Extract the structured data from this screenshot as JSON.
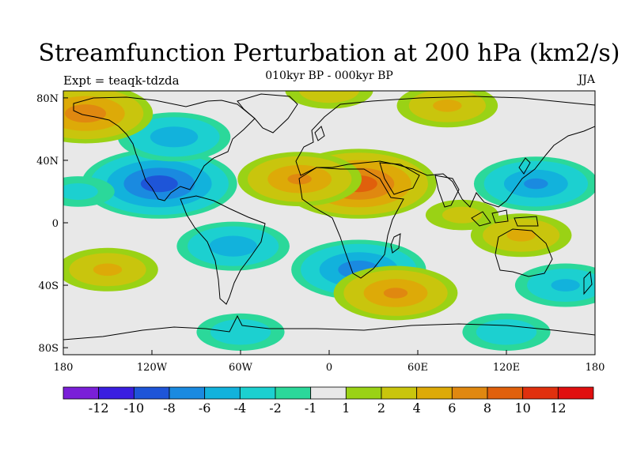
{
  "title": "Streamfunction Perturbation at 200 hPa (km2/s)",
  "subtitle": "010kyr BP - 000kyr BP",
  "left_label": "Expt = teaqk-tdzda",
  "right_label": "JJA",
  "y_ticks": [
    {
      "label": "80N",
      "lat": 80
    },
    {
      "label": "40N",
      "lat": 40
    },
    {
      "label": "0",
      "lat": 0
    },
    {
      "label": "40S",
      "lat": -40
    },
    {
      "label": "80S",
      "lat": -80
    }
  ],
  "x_ticks": [
    {
      "label": "180",
      "lon": -180
    },
    {
      "label": "120W",
      "lon": -120
    },
    {
      "label": "60W",
      "lon": -60
    },
    {
      "label": "0",
      "lon": 0
    },
    {
      "label": "60E",
      "lon": 60
    },
    {
      "label": "120E",
      "lon": 120
    },
    {
      "label": "180",
      "lon": 180
    }
  ],
  "colorbar": {
    "colors": [
      "#7a1fd8",
      "#3a1ee0",
      "#1e55d8",
      "#1a8ae0",
      "#12b2dc",
      "#1cd0d0",
      "#2bd89a",
      "#e8e8e8",
      "#9ad215",
      "#c9c50d",
      "#ddaa08",
      "#e08810",
      "#e0600c",
      "#e0300e",
      "#e00f0f"
    ],
    "labels": [
      "-12",
      "-10",
      "-8",
      "-6",
      "-4",
      "-2",
      "-1",
      "1",
      "2",
      "4",
      "6",
      "8",
      "10",
      "12"
    ]
  },
  "chart_data": {
    "type": "heatmap",
    "variable": "Streamfunction Perturbation at 200 hPa (km2/s)",
    "xlim": [
      -180,
      180
    ],
    "ylim": [
      -90,
      90
    ],
    "anomaly_centers": [
      {
        "lon": -115,
        "lat": 25,
        "value": -9
      },
      {
        "lon": -105,
        "lat": 55,
        "value": -5
      },
      {
        "lon": 20,
        "lat": 25,
        "value": 9
      },
      {
        "lon": -20,
        "lat": 28,
        "value": 6
      },
      {
        "lon": -165,
        "lat": 70,
        "value": 7
      },
      {
        "lon": 20,
        "lat": -30,
        "value": -7
      },
      {
        "lon": -65,
        "lat": -15,
        "value": -5
      },
      {
        "lon": 140,
        "lat": 25,
        "value": -6
      },
      {
        "lon": 45,
        "lat": -45,
        "value": 6
      },
      {
        "lon": 160,
        "lat": -40,
        "value": -4
      },
      {
        "lon": 130,
        "lat": -8,
        "value": 4
      },
      {
        "lon": -150,
        "lat": -30,
        "value": 4
      },
      {
        "lon": 0,
        "lat": 85,
        "value": 3
      },
      {
        "lon": 80,
        "lat": 75,
        "value": 4
      },
      {
        "lon": -60,
        "lat": -70,
        "value": -3
      },
      {
        "lon": 120,
        "lat": -70,
        "value": -3
      },
      {
        "lon": -170,
        "lat": 20,
        "value": -2
      },
      {
        "lon": 90,
        "lat": 5,
        "value": 2
      }
    ]
  }
}
